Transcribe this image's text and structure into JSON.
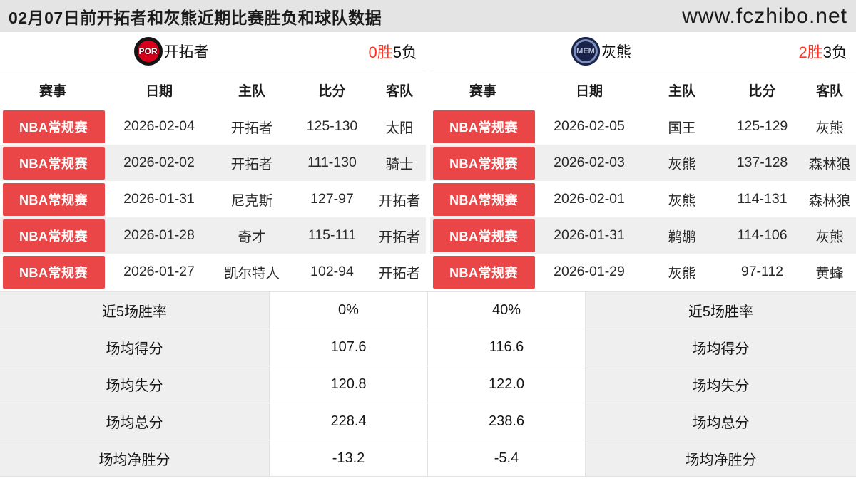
{
  "header": {
    "title": "02月07日前开拓者和灰熊近期比赛胜负和球队数据",
    "site": "www.fczhibo.net"
  },
  "columns": {
    "league": "赛事",
    "date": "日期",
    "home": "主队",
    "score": "比分",
    "away": "客队"
  },
  "stat_labels": {
    "win_rate": "近5场胜率",
    "avg_points": "场均得分",
    "avg_conceded": "场均失分",
    "avg_total": "场均总分",
    "avg_diff": "场均净胜分"
  },
  "teams": [
    {
      "name": "开拓者",
      "logo_text": "POR",
      "wins": "0胜",
      "losses": "5负",
      "matches": [
        {
          "league": "NBA常规赛",
          "date": "2026-02-04",
          "home": "开拓者",
          "score": "125-130",
          "away": "太阳"
        },
        {
          "league": "NBA常规赛",
          "date": "2026-02-02",
          "home": "开拓者",
          "score": "111-130",
          "away": "骑士"
        },
        {
          "league": "NBA常规赛",
          "date": "2026-01-31",
          "home": "尼克斯",
          "score": "127-97",
          "away": "开拓者"
        },
        {
          "league": "NBA常规赛",
          "date": "2026-01-28",
          "home": "奇才",
          "score": "115-111",
          "away": "开拓者"
        },
        {
          "league": "NBA常规赛",
          "date": "2026-01-27",
          "home": "凯尔特人",
          "score": "102-94",
          "away": "开拓者"
        }
      ],
      "stats": {
        "win_rate": "0%",
        "avg_points": "107.6",
        "avg_conceded": "120.8",
        "avg_total": "228.4",
        "avg_diff": "-13.2"
      }
    },
    {
      "name": "灰熊",
      "logo_text": "MEM",
      "wins": "2胜",
      "losses": "3负",
      "matches": [
        {
          "league": "NBA常规赛",
          "date": "2026-02-05",
          "home": "国王",
          "score": "125-129",
          "away": "灰熊"
        },
        {
          "league": "NBA常规赛",
          "date": "2026-02-03",
          "home": "灰熊",
          "score": "137-128",
          "away": "森林狼"
        },
        {
          "league": "NBA常规赛",
          "date": "2026-02-01",
          "home": "灰熊",
          "score": "114-131",
          "away": "森林狼"
        },
        {
          "league": "NBA常规赛",
          "date": "2026-01-31",
          "home": "鹈鹕",
          "score": "114-106",
          "away": "灰熊"
        },
        {
          "league": "NBA常规赛",
          "date": "2026-01-29",
          "home": "灰熊",
          "score": "97-112",
          "away": "黄蜂"
        }
      ],
      "stats": {
        "win_rate": "40%",
        "avg_points": "116.6",
        "avg_conceded": "122.0",
        "avg_total": "238.6",
        "avg_diff": "-5.4"
      }
    }
  ],
  "colors": {
    "badge-red": "#ea4647",
    "win-red": "#ff3322",
    "titlebar-bg": "#e4e4e4",
    "row-alt": "#efefef",
    "stat-label-bg": "#f0efef"
  }
}
